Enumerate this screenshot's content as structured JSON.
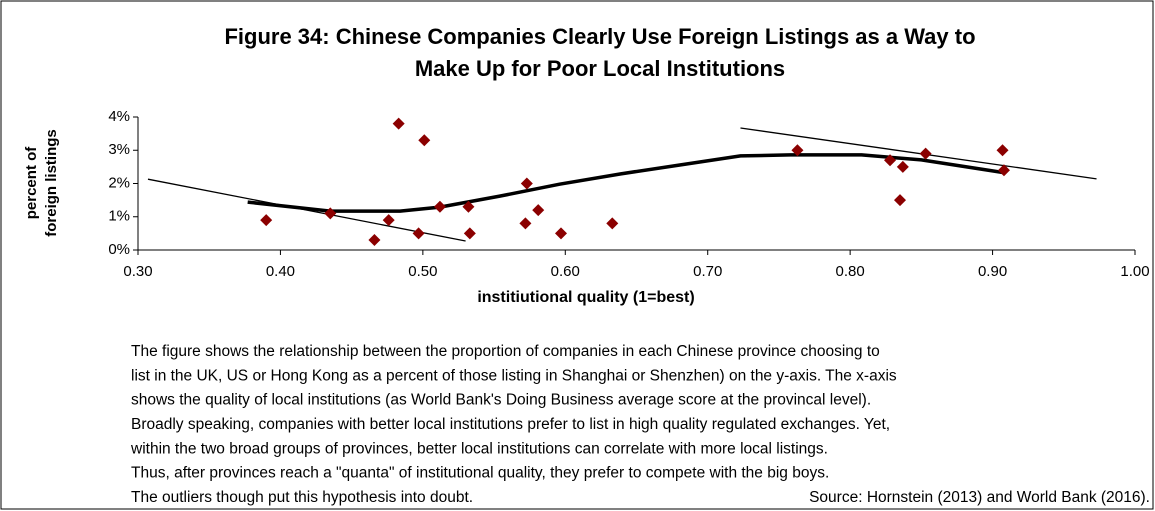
{
  "chart_data": {
    "type": "scatter",
    "title": [
      "Figure 34: Chinese Companies Clearly Use Foreign Listings as a Way to",
      "Make Up for Poor Local Institutions"
    ],
    "xlabel": "institiutional quality (1=best)",
    "ylabel": [
      "percent of",
      "foreign listings"
    ],
    "x": [
      0.39,
      0.435,
      0.466,
      0.476,
      0.483,
      0.497,
      0.501,
      0.512,
      0.532,
      0.533,
      0.573,
      0.572,
      0.581,
      0.597,
      0.633,
      0.763,
      0.828,
      0.837,
      0.835,
      0.853,
      0.907,
      0.908
    ],
    "values": [
      0.9,
      1.1,
      0.3,
      0.9,
      3.8,
      0.5,
      3.3,
      1.3,
      1.3,
      0.5,
      2.0,
      0.8,
      1.2,
      0.5,
      0.8,
      3.0,
      2.7,
      2.5,
      1.5,
      2.9,
      3.0,
      2.4
    ],
    "color": "#8b0000",
    "trend_lines": [
      {
        "x": [
          0.307,
          0.53
        ],
        "y": [
          2.13,
          0.27
        ]
      },
      {
        "x": [
          0.723,
          0.973
        ],
        "y": [
          3.67,
          2.14
        ]
      }
    ],
    "fit_curve": {
      "x": [
        0.377,
        0.435,
        0.484,
        0.512,
        0.554,
        0.596,
        0.639,
        0.681,
        0.723,
        0.758,
        0.808,
        0.85,
        0.909
      ],
      "y": [
        1.44,
        1.17,
        1.17,
        1.29,
        1.62,
        1.98,
        2.29,
        2.56,
        2.83,
        2.86,
        2.86,
        2.71,
        2.32
      ]
    },
    "xlim": [
      0.3,
      1.0
    ],
    "xticks": [
      {
        "value": 0.3,
        "label": "0.30"
      },
      {
        "value": 0.4,
        "label": "0.40"
      },
      {
        "value": 0.5,
        "label": "0.50"
      },
      {
        "value": 0.6,
        "label": "0.60"
      },
      {
        "value": 0.7,
        "label": "0.70"
      },
      {
        "value": 0.8,
        "label": "0.80"
      },
      {
        "value": 0.9,
        "label": "0.90"
      },
      {
        "value": 1.0,
        "label": "1.00"
      }
    ],
    "ylim": [
      0,
      4
    ],
    "yticks": [
      {
        "value": 0,
        "label": "0%"
      },
      {
        "value": 1,
        "label": "1%"
      },
      {
        "value": 2,
        "label": "2%"
      },
      {
        "value": 3,
        "label": "3%"
      },
      {
        "value": 4,
        "label": "4%"
      }
    ],
    "grid": false,
    "caption": [
      "The figure shows the relationship between the proportion of companies in each Chinese province choosing to",
      "list in the UK, US or Hong Kong as a percent of those listing in Shanghai or Shenzhen) on the y-axis. The x-axis",
      "shows the quality of local institutions (as World Bank's Doing Business average score at the provincal level).",
      "Broadly speaking, companies with better local institutions prefer to list in high quality regulated exchanges. Yet,",
      "within the two broad groups of provinces, better local institutions can correlate with more local listings.",
      "Thus, after provinces reach a \"quanta\" of institutional quality, they prefer to compete with the big boys.",
      "The outliers though put this hypothesis into doubt."
    ],
    "source": "Source: Hornstein (2013) and World Bank (2016)."
  }
}
